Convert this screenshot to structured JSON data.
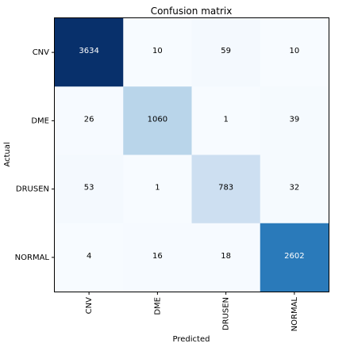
{
  "chart_data": {
    "type": "heatmap",
    "title": "Confusion matrix",
    "xlabel": "Predicted",
    "ylabel": "Actual",
    "x_categories": [
      "CNV",
      "DME",
      "DRUSEN",
      "NORMAL"
    ],
    "y_categories": [
      "CNV",
      "DME",
      "DRUSEN",
      "NORMAL"
    ],
    "values": [
      [
        3634,
        10,
        59,
        10
      ],
      [
        26,
        1060,
        1,
        39
      ],
      [
        53,
        1,
        783,
        32
      ],
      [
        4,
        16,
        18,
        2602
      ]
    ],
    "colormap": "Blues",
    "grid": false
  }
}
